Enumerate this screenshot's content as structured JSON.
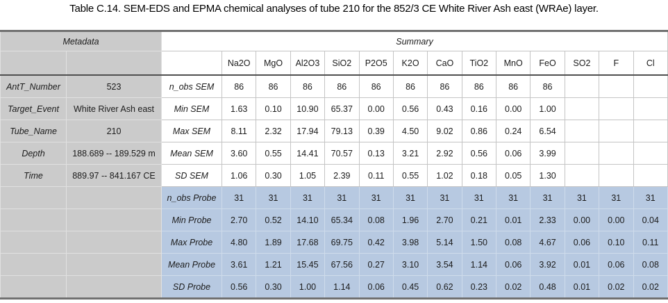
{
  "title": "Table C.14. SEM-EDS and EPMA chemical analyses of tube 210 for the 852/3 CE White River Ash east (WRAe) layer.",
  "colors": {
    "metadata_bg": "#cbcbcb",
    "probe_bg": "#b7c9e1",
    "frame_rule": "#707070",
    "heavy_rule": "#4f4f4f"
  },
  "table": {
    "metadata": {
      "header": "Metadata",
      "rows": [
        {
          "label": "AntT_Number",
          "value": "523"
        },
        {
          "label": "Target_Event",
          "value": "White River Ash east"
        },
        {
          "label": "Tube_Name",
          "value": "210"
        },
        {
          "label": "Depth",
          "value": "188.689 -- 189.529 m"
        },
        {
          "label": "Time",
          "value": "889.97 -- 841.167 CE"
        }
      ]
    },
    "summary": {
      "header": "Summary",
      "columns": [
        "Na2O",
        "MgO",
        "Al2O3",
        "SiO2",
        "P2O5",
        "K2O",
        "CaO",
        "TiO2",
        "MnO",
        "FeO",
        "SO2",
        "F",
        "Cl"
      ],
      "rows": [
        {
          "label": "n_obs Probe",
          "group": "probe",
          "values": []
        },
        {
          "label": "n_obs SEM",
          "group": "sem",
          "values": [
            "86",
            "86",
            "86",
            "86",
            "86",
            "86",
            "86",
            "86",
            "86",
            "86",
            "",
            "",
            ""
          ]
        },
        {
          "label": "Min SEM",
          "group": "sem",
          "values": [
            "1.63",
            "0.10",
            "10.90",
            "65.37",
            "0.00",
            "0.56",
            "0.43",
            "0.16",
            "0.00",
            "1.00",
            "",
            "",
            ""
          ]
        },
        {
          "label": "Max SEM",
          "group": "sem",
          "values": [
            "8.11",
            "2.32",
            "17.94",
            "79.13",
            "0.39",
            "4.50",
            "9.02",
            "0.86",
            "0.24",
            "6.54",
            "",
            "",
            ""
          ]
        },
        {
          "label": "Mean SEM",
          "group": "sem",
          "values": [
            "3.60",
            "0.55",
            "14.41",
            "70.57",
            "0.13",
            "3.21",
            "2.92",
            "0.56",
            "0.06",
            "3.99",
            "",
            "",
            ""
          ]
        },
        {
          "label": "SD SEM",
          "group": "sem",
          "values": [
            "1.06",
            "0.30",
            "1.05",
            "2.39",
            "0.11",
            "0.55",
            "1.02",
            "0.18",
            "0.05",
            "1.30",
            "",
            "",
            ""
          ]
        }
      ],
      "rows_probe": [
        {
          "label": "n_obs Probe",
          "group": "probe",
          "values": [
            "31",
            "31",
            "31",
            "31",
            "31",
            "31",
            "31",
            "31",
            "31",
            "31",
            "31",
            "31",
            "31"
          ]
        },
        {
          "label": "Min Probe",
          "group": "probe",
          "values": [
            "2.70",
            "0.52",
            "14.10",
            "65.34",
            "0.08",
            "1.96",
            "2.70",
            "0.21",
            "0.01",
            "2.33",
            "0.00",
            "0.00",
            "0.04"
          ]
        },
        {
          "label": "Max Probe",
          "group": "probe",
          "values": [
            "4.80",
            "1.89",
            "17.68",
            "69.75",
            "0.42",
            "3.98",
            "5.14",
            "1.50",
            "0.08",
            "4.67",
            "0.06",
            "0.10",
            "0.11"
          ]
        },
        {
          "label": "Mean Probe",
          "group": "probe",
          "values": [
            "3.61",
            "1.21",
            "15.45",
            "67.56",
            "0.27",
            "3.10",
            "3.54",
            "1.14",
            "0.06",
            "3.92",
            "0.01",
            "0.06",
            "0.08"
          ]
        },
        {
          "label": "SD Probe",
          "group": "probe",
          "values": [
            "0.56",
            "0.30",
            "1.00",
            "1.14",
            "0.06",
            "0.45",
            "0.62",
            "0.23",
            "0.02",
            "0.48",
            "0.01",
            "0.02",
            "0.02"
          ]
        }
      ]
    }
  }
}
